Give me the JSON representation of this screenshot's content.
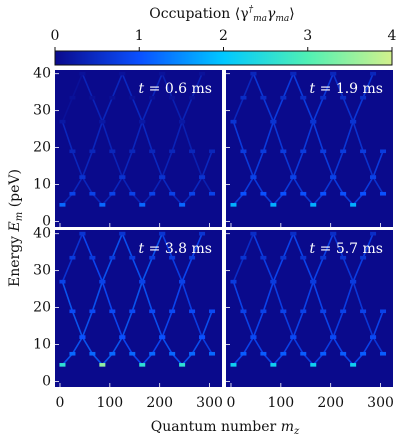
{
  "chart_data": {
    "type": "heatmap-panels",
    "colorbar": {
      "label": [
        "Occupation ⟨γ",
        "†",
        "ma",
        "γ",
        "ma",
        "⟩"
      ],
      "lim": [
        0,
        4
      ],
      "ticks": [
        0,
        1,
        2,
        3,
        4
      ],
      "colors": [
        "#0a0a8c",
        "#0a50ff",
        "#00c8ff",
        "#50f0b4",
        "#d2f08c"
      ]
    },
    "xlabel": [
      "Quantum number ",
      "m",
      "z"
    ],
    "ylabel": [
      "Energy ",
      "E",
      "m",
      " (peV)"
    ],
    "xlim": [
      -10,
      325
    ],
    "ylim": [
      -1.5,
      41
    ],
    "xticks": [
      0,
      100,
      200,
      300
    ],
    "yticks": [
      0,
      10,
      20,
      30,
      40
    ],
    "x": [
      5,
      25,
      45,
      65,
      85,
      105,
      125,
      145,
      165,
      185,
      205,
      225,
      245,
      265,
      285,
      305
    ],
    "energies": [
      [
        27,
        33.5,
        40,
        null,
        null,
        null,
        null,
        null,
        null,
        null,
        null,
        null,
        null,
        null,
        null,
        null
      ],
      [
        4.5,
        7.5,
        12,
        19,
        27,
        33.5,
        40,
        null,
        null,
        null,
        null,
        null,
        null,
        null,
        null,
        null
      ],
      [
        27,
        19,
        12,
        7.5,
        4.5,
        7.5,
        12,
        19,
        27,
        33.5,
        40,
        null,
        null,
        null,
        null,
        null
      ],
      [
        null,
        null,
        40,
        33.5,
        27,
        19,
        12,
        7.5,
        4.5,
        7.5,
        12,
        19,
        27,
        33.5,
        40,
        null
      ],
      [
        null,
        null,
        null,
        null,
        null,
        null,
        40,
        33.5,
        27,
        19,
        12,
        7.5,
        4.5,
        7.5,
        12,
        19
      ],
      [
        null,
        null,
        null,
        null,
        null,
        null,
        null,
        null,
        null,
        null,
        40,
        33.5,
        27,
        19,
        12,
        7.5
      ]
    ],
    "panels": [
      {
        "title": [
          "t",
          " = 0.6 ms"
        ],
        "occupation": [
          [
            0.2,
            0.1,
            0.1,
            null,
            null,
            null,
            null,
            null,
            null,
            null,
            null,
            null,
            null,
            null,
            null,
            null
          ],
          [
            1.2,
            0.8,
            0.6,
            0.4,
            0.2,
            0.1,
            0.1,
            null,
            null,
            null,
            null,
            null,
            null,
            null,
            null,
            null
          ],
          [
            0.2,
            0.4,
            0.6,
            0.8,
            1.2,
            0.8,
            0.6,
            0.4,
            0.2,
            0.1,
            0.1,
            null,
            null,
            null,
            null,
            null
          ],
          [
            null,
            null,
            0.1,
            0.1,
            0.2,
            0.4,
            0.6,
            0.8,
            1.2,
            0.8,
            0.6,
            0.4,
            0.2,
            0.1,
            0.1,
            null
          ],
          [
            null,
            null,
            null,
            null,
            null,
            null,
            0.1,
            0.1,
            0.2,
            0.4,
            0.6,
            0.8,
            1.2,
            0.8,
            0.6,
            0.4
          ],
          [
            null,
            null,
            null,
            null,
            null,
            null,
            null,
            null,
            null,
            null,
            0.1,
            0.1,
            0.2,
            0.4,
            0.6,
            0.8
          ]
        ]
      },
      {
        "title": [
          "t",
          " = 1.9 ms"
        ],
        "occupation": [
          [
            0.6,
            0.5,
            0.4,
            null,
            null,
            null,
            null,
            null,
            null,
            null,
            null,
            null,
            null,
            null,
            null,
            null
          ],
          [
            1.8,
            1.0,
            0.8,
            0.7,
            0.6,
            0.5,
            0.4,
            null,
            null,
            null,
            null,
            null,
            null,
            null,
            null,
            null
          ],
          [
            0.6,
            0.7,
            0.8,
            1.0,
            1.8,
            1.0,
            0.8,
            0.7,
            0.6,
            0.5,
            0.4,
            null,
            null,
            null,
            null,
            null
          ],
          [
            null,
            null,
            0.4,
            0.5,
            0.6,
            0.7,
            0.8,
            1.0,
            1.8,
            1.0,
            0.8,
            0.7,
            0.6,
            0.5,
            0.4,
            null
          ],
          [
            null,
            null,
            null,
            null,
            null,
            null,
            0.4,
            0.5,
            0.6,
            0.7,
            0.8,
            1.0,
            1.8,
            1.0,
            0.8,
            0.7
          ],
          [
            null,
            null,
            null,
            null,
            null,
            null,
            null,
            null,
            null,
            null,
            0.4,
            0.5,
            0.6,
            0.7,
            0.8,
            1.0
          ]
        ]
      },
      {
        "title": [
          "t",
          " = 3.8 ms"
        ],
        "occupation": [
          [
            0.8,
            0.7,
            0.6,
            null,
            null,
            null,
            null,
            null,
            null,
            null,
            null,
            null,
            null,
            null,
            null,
            null
          ],
          [
            2.6,
            1.2,
            1.0,
            0.9,
            0.8,
            0.7,
            0.6,
            null,
            null,
            null,
            null,
            null,
            null,
            null,
            null,
            null
          ],
          [
            0.8,
            0.9,
            1.0,
            1.2,
            3.5,
            1.2,
            1.0,
            0.9,
            0.8,
            0.7,
            0.6,
            null,
            null,
            null,
            null,
            null
          ],
          [
            null,
            null,
            0.6,
            0.7,
            0.8,
            0.9,
            1.0,
            1.2,
            2.6,
            1.2,
            1.0,
            0.9,
            0.8,
            0.7,
            0.6,
            null
          ],
          [
            null,
            null,
            null,
            null,
            null,
            null,
            0.6,
            0.7,
            0.8,
            0.9,
            1.0,
            1.2,
            2.6,
            1.2,
            1.0,
            0.9
          ],
          [
            null,
            null,
            null,
            null,
            null,
            null,
            null,
            null,
            null,
            null,
            0.6,
            0.7,
            0.8,
            0.9,
            1.0,
            1.2
          ]
        ]
      },
      {
        "title": [
          "t",
          " = 5.7 ms"
        ],
        "occupation": [
          [
            0.7,
            0.6,
            0.5,
            null,
            null,
            null,
            null,
            null,
            null,
            null,
            null,
            null,
            null,
            null,
            null,
            null
          ],
          [
            2.2,
            1.1,
            0.9,
            0.8,
            0.7,
            0.6,
            0.5,
            null,
            null,
            null,
            null,
            null,
            null,
            null,
            null,
            null
          ],
          [
            0.7,
            0.8,
            0.9,
            1.1,
            2.2,
            1.1,
            0.9,
            0.8,
            0.7,
            0.6,
            0.5,
            null,
            null,
            null,
            null,
            null
          ],
          [
            null,
            null,
            0.5,
            0.6,
            0.7,
            0.8,
            0.9,
            1.1,
            2.2,
            1.1,
            0.9,
            0.8,
            0.7,
            0.6,
            0.5,
            null
          ],
          [
            null,
            null,
            null,
            null,
            null,
            null,
            0.5,
            0.6,
            0.7,
            0.8,
            0.9,
            1.1,
            2.2,
            1.1,
            0.9,
            0.8
          ],
          [
            null,
            null,
            null,
            null,
            null,
            null,
            null,
            null,
            null,
            null,
            0.5,
            0.6,
            0.7,
            0.8,
            0.9,
            1.1
          ]
        ]
      }
    ]
  }
}
